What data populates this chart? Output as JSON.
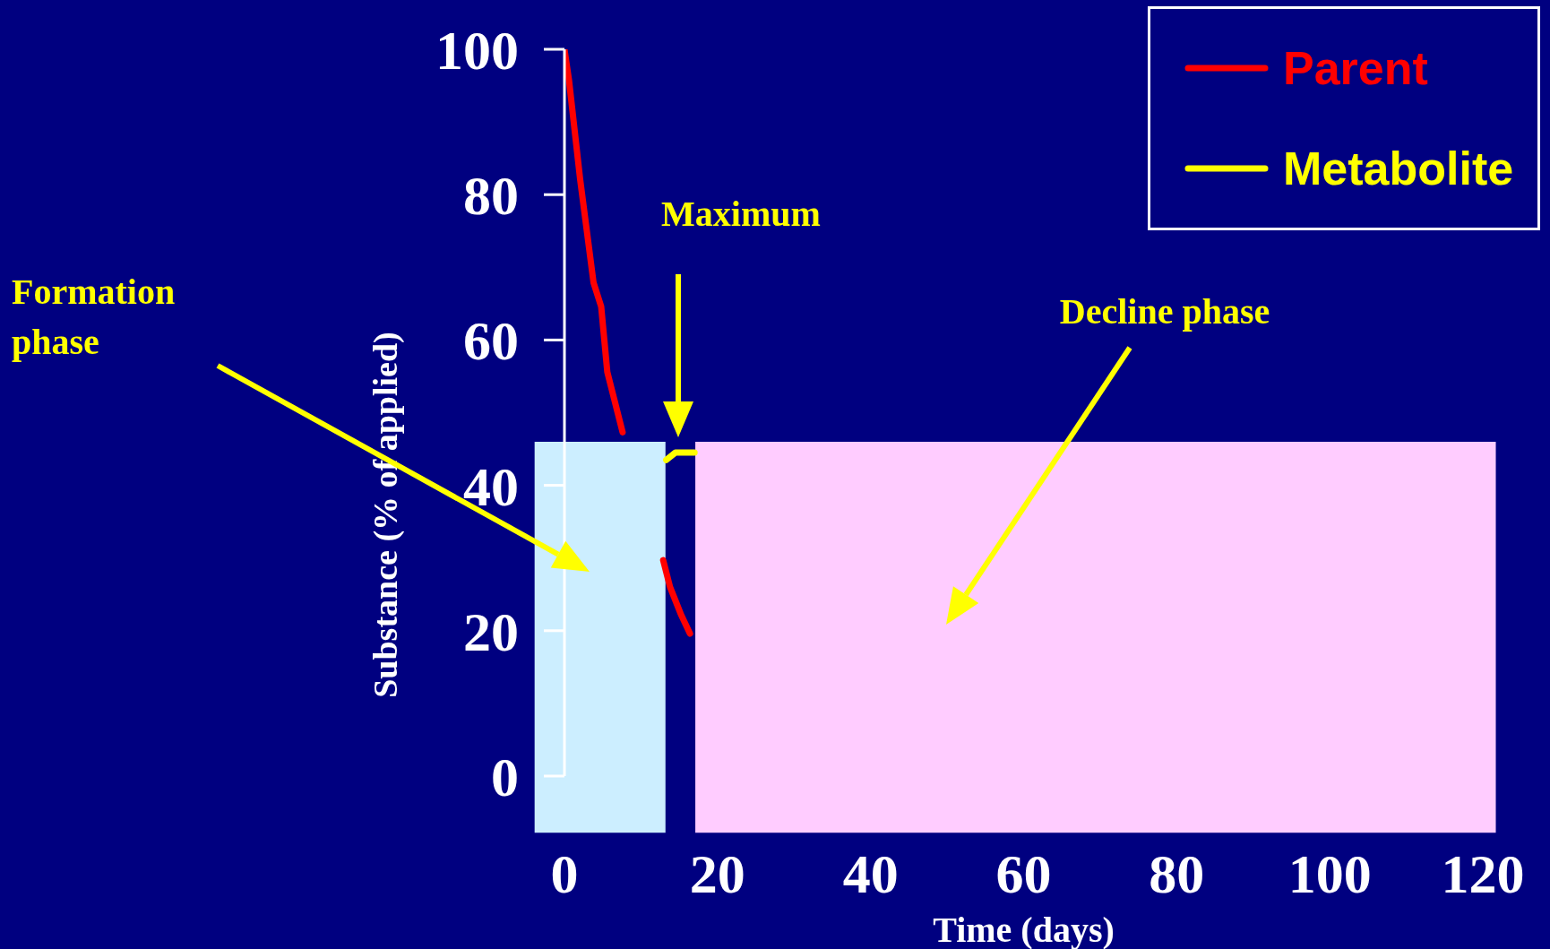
{
  "chart_data": {
    "type": "line",
    "xlabel": "Time (days)",
    "ylabel": "Substance (% of applied)",
    "xlim": [
      0,
      120
    ],
    "xticks": [
      0,
      20,
      40,
      60,
      80,
      100,
      120
    ],
    "ylim": [
      0,
      100
    ],
    "yticks": [
      0,
      20,
      40,
      60,
      80,
      100
    ],
    "series": [
      {
        "name": "Parent",
        "color": "#ff0000",
        "x": [
          0,
          0.6,
          2.05,
          3.8,
          4.8,
          5.6,
          7.6,
          10,
          12.9,
          13.8,
          15.2,
          16.4
        ],
        "values": [
          100,
          95.7,
          82.1,
          67.9,
          64.6,
          55.6,
          47.3,
          null,
          29.7,
          26,
          22.3,
          19.6
        ]
      },
      {
        "name": "Metabolite",
        "color": "#ffff00",
        "x": [
          13.3,
          14.5,
          17
        ],
        "values": [
          43.5,
          44.5,
          44.5
        ]
      }
    ],
    "bands": [
      {
        "axis": "x",
        "from": -3.9,
        "to": 13.2,
        "label": "Formation phase",
        "color": "#cceeff"
      },
      {
        "axis": "x",
        "from": 17.1,
        "to": 121.7,
        "label": "Decline phase",
        "color": "#ffccff"
      }
    ],
    "annotations": [
      "Maximum"
    ],
    "legend": "top right",
    "grid": false,
    "marker": "none",
    "line_style": "solid"
  }
}
